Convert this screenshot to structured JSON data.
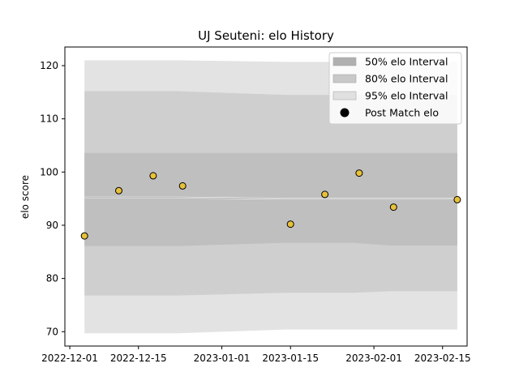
{
  "chart_data": {
    "type": "area",
    "title": "UJ Seuteni: elo History",
    "xlabel": "",
    "ylabel": "elo score",
    "ylim": [
      67.3,
      123.5
    ],
    "xlim": [
      "2022-11-30",
      "2023-02-20"
    ],
    "x_ticks": [
      "2022-12-01",
      "2022-12-15",
      "2023-01-01",
      "2023-01-15",
      "2023-02-01",
      "2023-02-15"
    ],
    "y_ticks": [
      70,
      80,
      90,
      100,
      110,
      120
    ],
    "dates": [
      "2022-12-04",
      "2022-12-10",
      "2022-12-17",
      "2022-12-23",
      "2023-01-14",
      "2023-01-21",
      "2023-01-28",
      "2023-02-04",
      "2023-02-18"
    ],
    "mean": [
      95.2,
      95.2,
      95.2,
      95.2,
      95.0,
      95.0,
      95.0,
      95.0,
      95.0
    ],
    "intervals": [
      {
        "name": "95% elo Interval",
        "lower": [
          69.7,
          69.7,
          69.7,
          69.7,
          70.4,
          70.4,
          70.4,
          70.4,
          70.4
        ],
        "upper": [
          121.0,
          121.0,
          121.0,
          121.0,
          120.7,
          120.7,
          120.7,
          120.7,
          120.7
        ],
        "color": "#e3e3e3"
      },
      {
        "name": "80% elo Interval",
        "lower": [
          76.8,
          76.8,
          76.8,
          76.8,
          77.3,
          77.3,
          77.3,
          77.6,
          77.6
        ],
        "upper": [
          115.2,
          115.2,
          115.2,
          115.2,
          114.5,
          114.5,
          114.5,
          114.5,
          114.5
        ],
        "color": "#cfcfcf"
      },
      {
        "name": "50% elo Interval",
        "lower": [
          86.1,
          86.1,
          86.1,
          86.1,
          86.7,
          86.7,
          86.7,
          86.2,
          86.2
        ],
        "upper": [
          103.6,
          103.6,
          103.6,
          103.6,
          103.6,
          103.6,
          103.6,
          103.6,
          103.6
        ],
        "color": "#bfbfbf"
      }
    ],
    "points": {
      "name": "Post Match elo",
      "color": "#e8c13a",
      "values": [
        {
          "x": "2022-12-04",
          "y": 88.0
        },
        {
          "x": "2022-12-11",
          "y": 96.5
        },
        {
          "x": "2022-12-18",
          "y": 99.3
        },
        {
          "x": "2022-12-24",
          "y": 97.4
        },
        {
          "x": "2023-01-15",
          "y": 90.2
        },
        {
          "x": "2023-01-22",
          "y": 95.8
        },
        {
          "x": "2023-01-29",
          "y": 99.8
        },
        {
          "x": "2023-02-05",
          "y": 93.4
        },
        {
          "x": "2023-02-18",
          "y": 94.8
        }
      ]
    },
    "legend": {
      "placement": "top-right",
      "entries": [
        {
          "label": "50% elo Interval",
          "color": "#b0b0b0",
          "kind": "patch"
        },
        {
          "label": "80% elo Interval",
          "color": "#c8c8c8",
          "kind": "patch"
        },
        {
          "label": "95% elo Interval",
          "color": "#e0e0e0",
          "kind": "patch"
        },
        {
          "label": "Post Match elo",
          "color": "#000000",
          "kind": "marker"
        }
      ]
    },
    "grid": false
  }
}
